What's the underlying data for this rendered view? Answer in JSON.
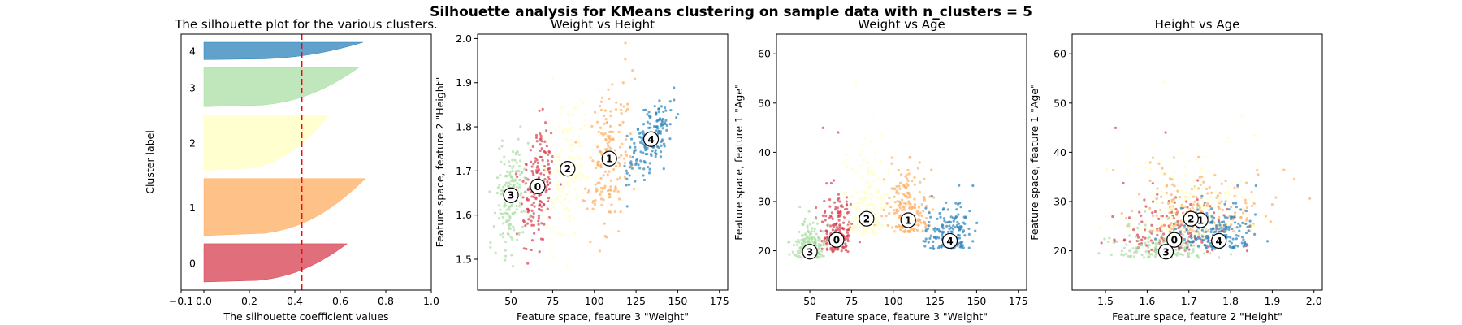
{
  "figure": {
    "suptitle": "Silhouette analysis for KMeans clustering on sample data with n_clusters = 5"
  },
  "colors": {
    "cluster_0": "#d53e4f",
    "cluster_1": "#fdae61",
    "cluster_2": "#ffffbf",
    "cluster_3": "#abdda4",
    "cluster_4": "#2b83ba",
    "average_line": "#ff0000"
  },
  "chart_data": [
    {
      "type": "area",
      "title": "The silhouette plot for the various clusters.",
      "xlabel": "The silhouette coefficient values",
      "ylabel": "Cluster label",
      "xlim": [
        -0.1,
        1.0
      ],
      "xticks": [
        "−0.1",
        "0.0",
        "0.2",
        "0.4",
        "0.6",
        "0.8",
        "1.0"
      ],
      "xtick_values": [
        -0.1,
        0.0,
        0.2,
        0.4,
        0.6,
        0.8,
        1.0
      ],
      "average_silhouette": 0.43,
      "clusters": [
        {
          "label": "0",
          "max_coefficient": 0.63,
          "size": 55
        },
        {
          "label": "1",
          "max_coefficient": 0.71,
          "size": 82
        },
        {
          "label": "2",
          "max_coefficient": 0.55,
          "size": 80
        },
        {
          "label": "3",
          "max_coefficient": 0.68,
          "size": 56
        },
        {
          "label": "4",
          "max_coefficient": 0.7,
          "size": 25
        }
      ]
    },
    {
      "type": "scatter",
      "title": "Weight vs Height",
      "xlabel": "Feature space, feature 3 \"Weight\"",
      "ylabel": "Feature space, feature 2 \"Height\"",
      "xlim": [
        30,
        180
      ],
      "ylim": [
        1.43,
        2.01
      ],
      "xticks": [
        "50",
        "75",
        "100",
        "125",
        "150",
        "175"
      ],
      "xtick_values": [
        50,
        75,
        100,
        125,
        150,
        175
      ],
      "yticks": [
        "1.5",
        "1.6",
        "1.7",
        "1.8",
        "1.9",
        "2.0"
      ],
      "ytick_values": [
        1.5,
        1.6,
        1.7,
        1.8,
        1.9,
        2.0
      ],
      "centers": [
        {
          "label": "0",
          "x": 66,
          "y": 1.665
        },
        {
          "label": "1",
          "x": 109,
          "y": 1.728
        },
        {
          "label": "2",
          "x": 84,
          "y": 1.705
        },
        {
          "label": "3",
          "x": 50,
          "y": 1.645
        },
        {
          "label": "4",
          "x": 134,
          "y": 1.772
        }
      ]
    },
    {
      "type": "scatter",
      "title": "Weight vs Age",
      "xlabel": "Feature space, feature 3 \"Weight\"",
      "ylabel": "Feature space, feature 1 \"Age\"",
      "xlim": [
        30,
        180
      ],
      "ylim": [
        12,
        64
      ],
      "xticks": [
        "50",
        "75",
        "100",
        "125",
        "150",
        "175"
      ],
      "xtick_values": [
        50,
        75,
        100,
        125,
        150,
        175
      ],
      "yticks": [
        "20",
        "30",
        "40",
        "50",
        "60"
      ],
      "ytick_values": [
        20,
        30,
        40,
        50,
        60
      ],
      "centers": [
        {
          "label": "0",
          "x": 66,
          "y": 22.2
        },
        {
          "label": "1",
          "x": 109,
          "y": 26.2
        },
        {
          "label": "2",
          "x": 84,
          "y": 26.5
        },
        {
          "label": "3",
          "x": 50,
          "y": 19.8
        },
        {
          "label": "4",
          "x": 134,
          "y": 22
        }
      ]
    },
    {
      "type": "scatter",
      "title": "Height vs Age",
      "xlabel": "Feature space, feature 2 \"Height\"",
      "ylabel": "Feature space, feature 1 \"Age\"",
      "xlim": [
        1.42,
        2.02
      ],
      "ylim": [
        12,
        64
      ],
      "xticks": [
        "1.5",
        "1.6",
        "1.7",
        "1.8",
        "1.9",
        "2.0"
      ],
      "xtick_values": [
        1.5,
        1.6,
        1.7,
        1.8,
        1.9,
        2.0
      ],
      "yticks": [
        "20",
        "30",
        "40",
        "50",
        "60"
      ],
      "ytick_values": [
        20,
        30,
        40,
        50,
        60
      ],
      "centers": [
        {
          "label": "0",
          "x": 1.665,
          "y": 22.2
        },
        {
          "label": "1",
          "x": 1.728,
          "y": 26.2
        },
        {
          "label": "2",
          "x": 1.705,
          "y": 26.5
        },
        {
          "label": "3",
          "x": 1.645,
          "y": 19.8
        },
        {
          "label": "4",
          "x": 1.772,
          "y": 22
        }
      ]
    }
  ]
}
